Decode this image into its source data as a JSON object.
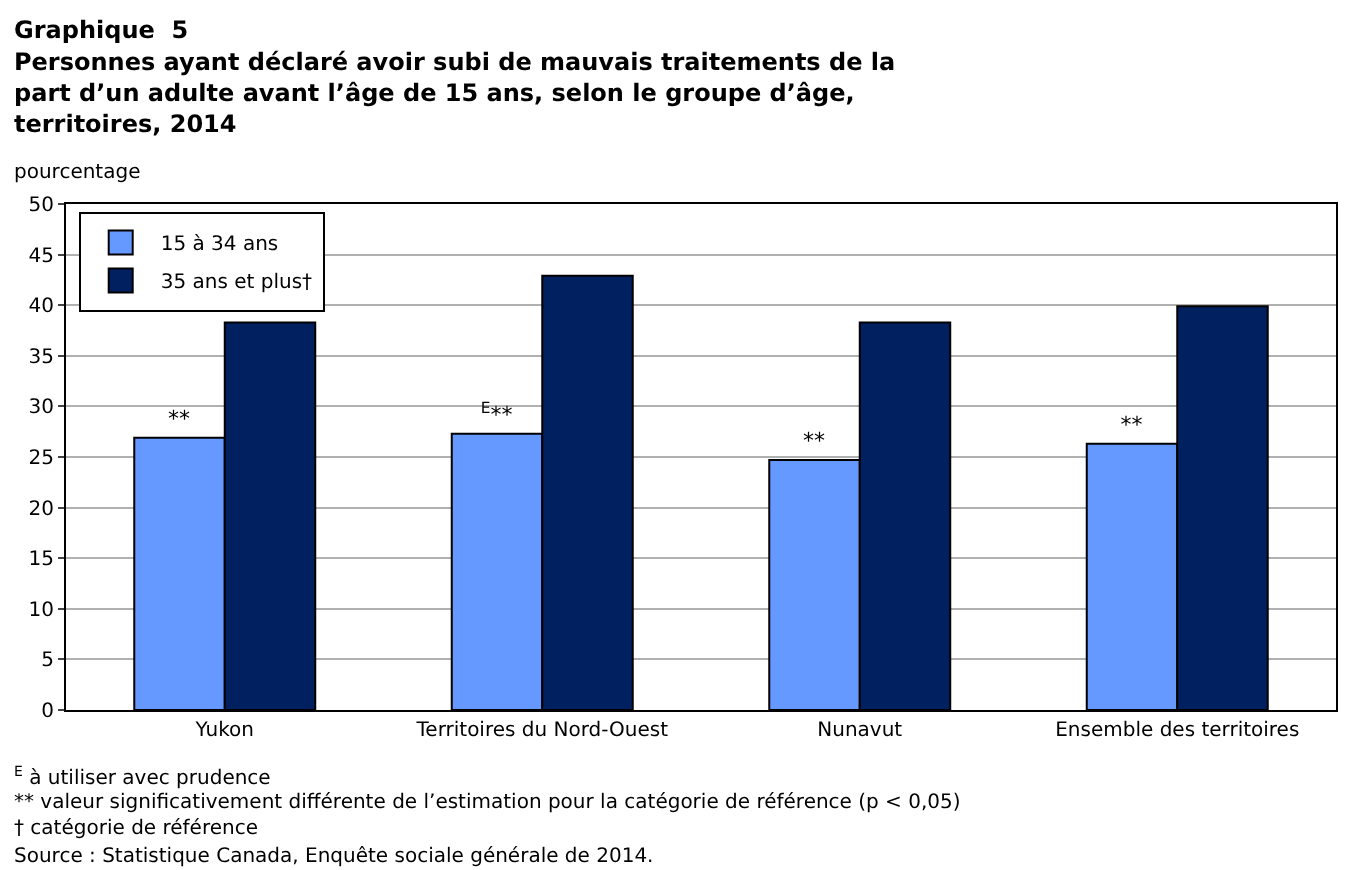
{
  "chart_data": {
    "type": "bar",
    "title": "Graphique  5",
    "subtitle": "Personnes ayant déclaré avoir subi de mauvais traitements de la part d’un adulte avant l’âge de 15 ans, selon le groupe d’âge, territoires, 2014",
    "ylabel": "pourcentage",
    "categories": [
      "Yukon",
      "Territoires du Nord-Ouest",
      "Nunavut",
      "Ensemble des territoires"
    ],
    "series": [
      {
        "name": "15 à 34 ans",
        "color": "#6699ff",
        "values": [
          26.9,
          27.3,
          24.7,
          26.3
        ],
        "value_labels": [
          "**",
          "$^{E}$**",
          "**",
          "**"
        ]
      },
      {
        "name": "35 ans et plus†",
        "color": "#002060",
        "values": [
          38.3,
          42.9,
          38.3,
          39.9
        ]
      }
    ],
    "ylim": [
      0,
      50
    ],
    "yticks": [
      0,
      5,
      10,
      15,
      20,
      25,
      30,
      35,
      40,
      45,
      50
    ],
    "grid": "y",
    "legend": "top left",
    "annotations": [
      "$^{E}$ à utiliser avec prudence",
      "** valeur significativement différente de l’estimation pour la catégorie de référence (p < 0,05)",
      "† catégorie de référence",
      "Source : Statistique Canada, Enquête sociale générale de 2014."
    ]
  }
}
